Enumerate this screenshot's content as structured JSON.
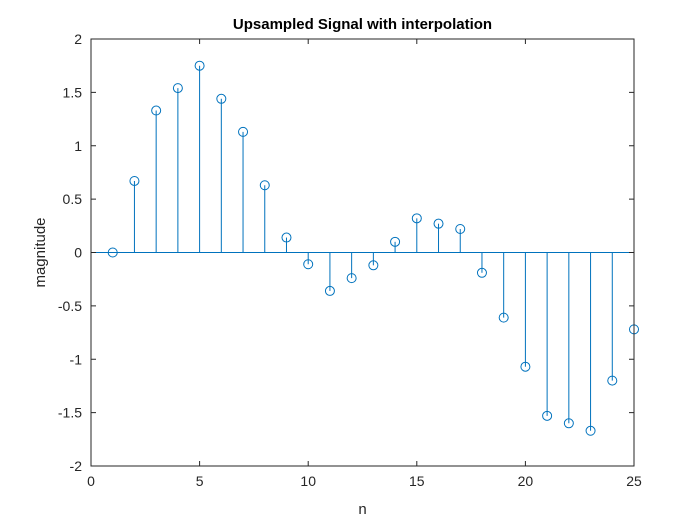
{
  "chart_data": {
    "type": "stem",
    "title": "Upsampled Signal with interpolation",
    "xlabel": "n",
    "ylabel": "magnitude",
    "xlim": [
      0,
      25
    ],
    "ylim": [
      -2,
      2
    ],
    "xticks": [
      0,
      5,
      10,
      15,
      20,
      25
    ],
    "yticks": [
      -2,
      -1.5,
      -1,
      -0.5,
      0,
      0.5,
      1,
      1.5,
      2
    ],
    "xtick_labels": [
      "0",
      "5",
      "10",
      "15",
      "20",
      "25"
    ],
    "ytick_labels": [
      "-2",
      "-1.5",
      "-1",
      "-0.5",
      "0",
      "0.5",
      "1",
      "1.5",
      "2"
    ],
    "grid": false,
    "color": "#0072BD",
    "x": [
      1,
      2,
      3,
      4,
      5,
      6,
      7,
      8,
      9,
      10,
      11,
      12,
      13,
      14,
      15,
      16,
      17,
      18,
      19,
      20,
      21,
      22,
      23,
      24,
      25
    ],
    "y": [
      0,
      0.67,
      1.33,
      1.54,
      1.75,
      1.44,
      1.13,
      0.63,
      0.14,
      -0.11,
      -0.36,
      -0.24,
      -0.12,
      0.1,
      0.32,
      0.27,
      0.22,
      -0.19,
      -0.61,
      -1.07,
      -1.53,
      -1.6,
      -1.67,
      -1.2,
      -0.72
    ]
  }
}
